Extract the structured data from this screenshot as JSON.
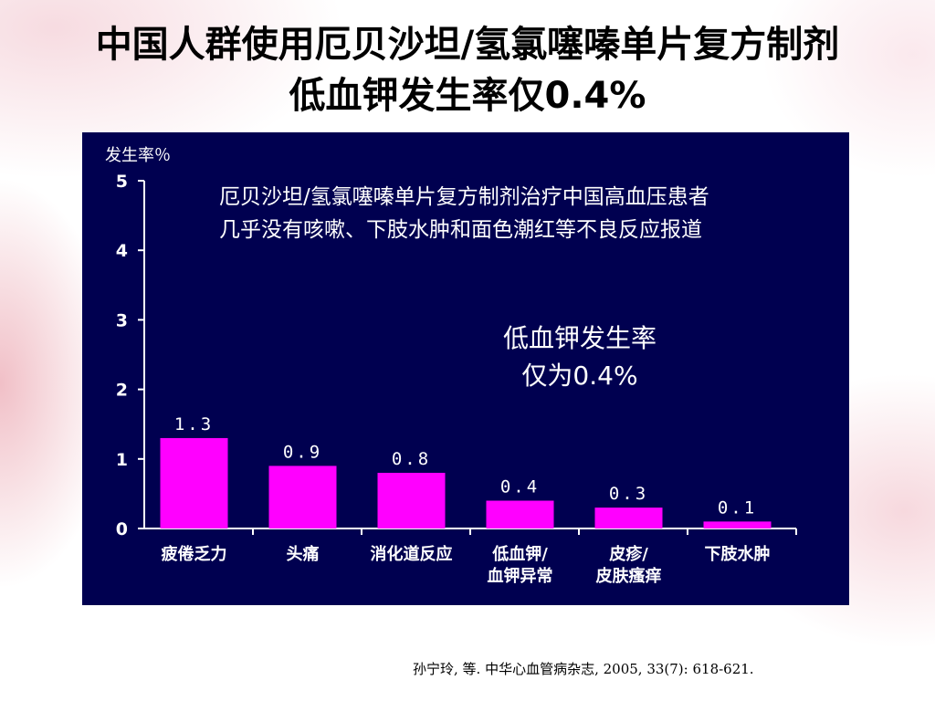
{
  "slide": {
    "title_line1": "中国人群使用厄贝沙坦/氢氯噻嗪单片复方制剂",
    "title_line2": "低血钾发生率仅0.4%",
    "citation": "孙宁玲, 等. 中华心血管病杂志, 2005, 33(7): 618-621."
  },
  "chart_data": {
    "type": "bar",
    "ylabel": "发生率％",
    "xlabel": "",
    "ylim": [
      0,
      5
    ],
    "y_ticks": [
      "0",
      "1",
      "2",
      "3",
      "4",
      "5"
    ],
    "categories": [
      [
        "疲倦乏力"
      ],
      [
        "头痛"
      ],
      [
        "消化道反应"
      ],
      [
        "低血钾/",
        "血钾异常"
      ],
      [
        "皮疹/",
        "皮肤瘙痒"
      ],
      [
        "下肢水肿"
      ]
    ],
    "values": [
      1.3,
      0.9,
      0.8,
      0.4,
      0.3,
      0.1
    ],
    "data_labels": [
      "1.3",
      "0.9",
      "0.8",
      "0.4",
      "0.3",
      "0.1"
    ],
    "annotations": {
      "note_line1": "厄贝沙坦/氢氯噻嗪单片复方制剂治疗中国高血压患者",
      "note_line2": "几乎没有咳嗽、下肢水肿和面色潮红等不良反应报道",
      "highlight_line1": "低血钾发生率",
      "highlight_line2": "仅为0.4%"
    },
    "grid": false,
    "colors": {
      "bar": "#ff00ff",
      "background": "#000050",
      "text": "#ffffff",
      "axis": "#ffffff"
    }
  }
}
